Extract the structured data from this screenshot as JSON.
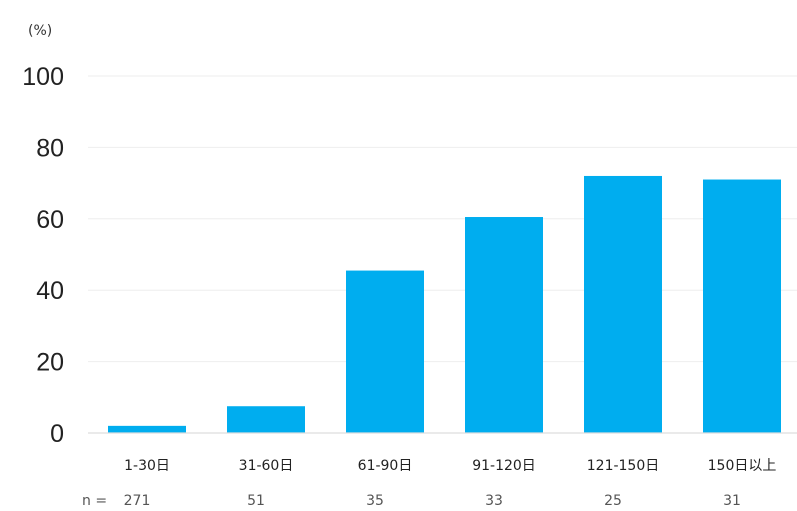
{
  "chart_data": {
    "type": "bar",
    "ylabel": "(%)",
    "ylim": [
      0,
      100
    ],
    "yticks": [
      "0",
      "20",
      "40",
      "60",
      "80",
      "100"
    ],
    "categories": [
      "1-30日",
      "31-60日",
      "61-90日",
      "91-120日",
      "121-150日",
      "150日以上"
    ],
    "values": [
      2,
      7.5,
      45.5,
      60.5,
      72,
      71
    ],
    "n_label": "n =",
    "n_values": [
      "271",
      "51",
      "35",
      "33",
      "25",
      "31"
    ],
    "bar_color": "#00adef",
    "grid": true
  }
}
